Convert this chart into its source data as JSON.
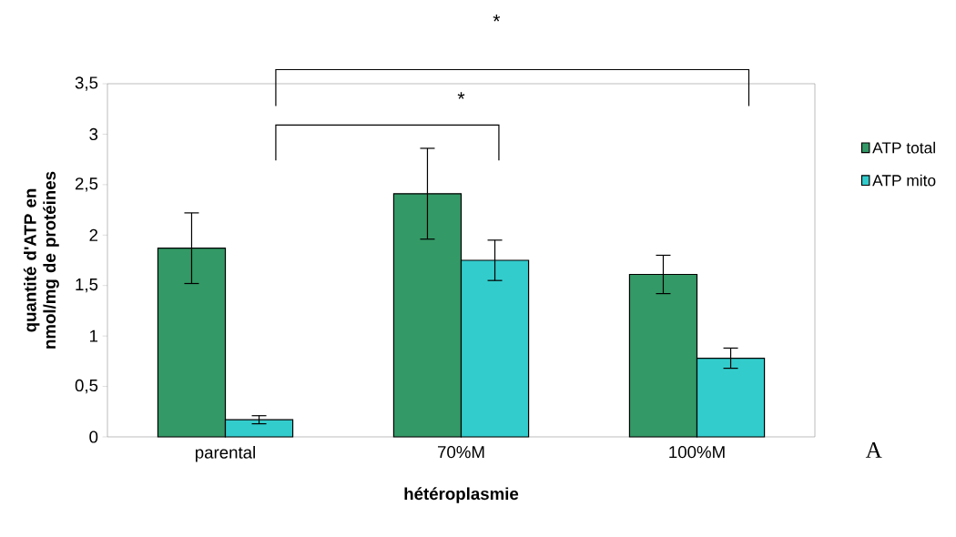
{
  "chart_data": {
    "type": "bar",
    "xlabel": "**hétéroplasmie**",
    "ylabel": "quantité d'ATP en nmol/mg de protéines",
    "categories": [
      "parental",
      "70%M",
      "100%M"
    ],
    "series": [
      {
        "name": "ATP total",
        "color": "#339966",
        "values": [
          1.87,
          2.41,
          1.61
        ],
        "errors": [
          0.35,
          0.45,
          0.19
        ]
      },
      {
        "name": "ATP mito",
        "color": "#33cccc",
        "values": [
          0.17,
          1.75,
          0.78
        ],
        "errors": [
          0.04,
          0.2,
          0.1
        ]
      }
    ],
    "ylim": [
      0,
      3.5
    ],
    "yticks": [
      {
        "value": 0,
        "label": "0"
      },
      {
        "value": 0.5,
        "label": "0,5"
      },
      {
        "value": 1,
        "label": "1"
      },
      {
        "value": 1.5,
        "label": "1,5"
      },
      {
        "value": 2,
        "label": "2"
      },
      {
        "value": 2.5,
        "label": "2,5"
      },
      {
        "value": 3,
        "label": "3"
      },
      {
        "value": 3.5,
        "label": "3,5"
      }
    ],
    "legend": "right",
    "annotations": [
      "*",
      "*",
      "A"
    ]
  }
}
